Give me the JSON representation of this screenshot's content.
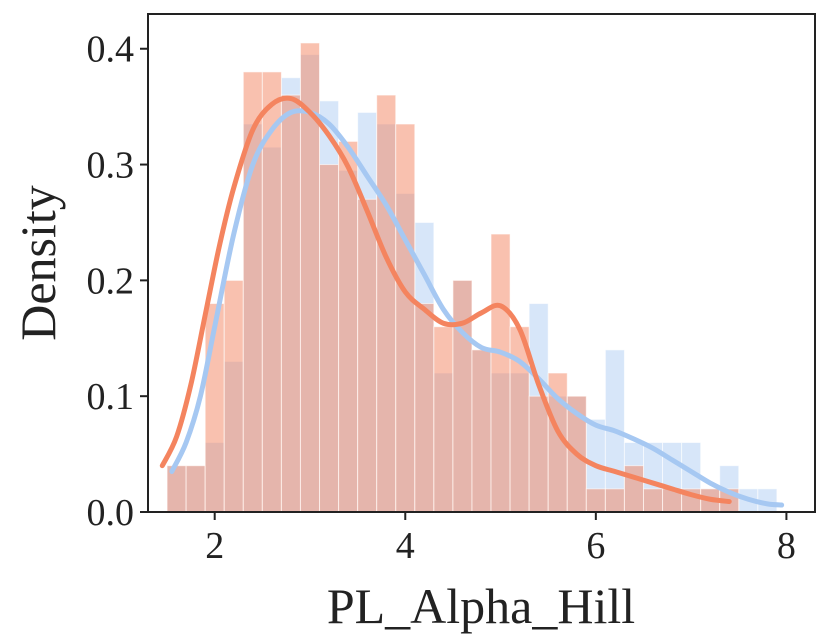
{
  "chart_data": {
    "type": "histogram-kde",
    "xlabel": "PL_Alpha_Hill",
    "ylabel": "Density",
    "xlim": [
      1.3,
      8.3
    ],
    "ylim": [
      0.0,
      0.43
    ],
    "xticks": [
      2,
      4,
      6,
      8
    ],
    "yticks": [
      "0.0",
      "0.1",
      "0.2",
      "0.3",
      "0.4"
    ],
    "grid": false,
    "legend": "none",
    "bin_width": 0.2,
    "series": [
      {
        "color": "#A6C8F2",
        "bin_starts": [
          1.5,
          1.7,
          1.9,
          2.1,
          2.3,
          2.5,
          2.7,
          2.9,
          3.1,
          3.3,
          3.5,
          3.7,
          3.9,
          4.1,
          4.3,
          4.5,
          4.7,
          4.9,
          5.1,
          5.3,
          5.5,
          5.7,
          5.9,
          6.1,
          6.3,
          6.5,
          6.7,
          6.9,
          7.1,
          7.3,
          7.5,
          7.7
        ],
        "values": [
          0.04,
          0.04,
          0.06,
          0.13,
          0.335,
          0.315,
          0.375,
          0.395,
          0.355,
          0.295,
          0.345,
          0.335,
          0.275,
          0.25,
          0.12,
          0.2,
          0.14,
          0.12,
          0.12,
          0.18,
          0.1,
          0.1,
          0.08,
          0.14,
          0.06,
          0.06,
          0.06,
          0.06,
          0.02,
          0.04,
          0.02,
          0.02
        ],
        "kde_x": [
          1.55,
          1.7,
          1.85,
          2.0,
          2.2,
          2.4,
          2.6,
          2.8,
          3.0,
          3.2,
          3.4,
          3.6,
          3.8,
          4.0,
          4.2,
          4.4,
          4.6,
          4.8,
          5.0,
          5.2,
          5.4,
          5.6,
          5.8,
          6.0,
          6.2,
          6.4,
          6.6,
          6.8,
          7.0,
          7.2,
          7.4,
          7.6,
          7.8,
          7.95
        ],
        "kde_y": [
          0.035,
          0.06,
          0.1,
          0.16,
          0.24,
          0.3,
          0.33,
          0.345,
          0.345,
          0.335,
          0.315,
          0.29,
          0.265,
          0.235,
          0.205,
          0.175,
          0.155,
          0.142,
          0.138,
          0.13,
          0.115,
          0.098,
          0.085,
          0.075,
          0.07,
          0.063,
          0.055,
          0.045,
          0.035,
          0.025,
          0.017,
          0.011,
          0.007,
          0.006
        ]
      },
      {
        "color": "#F4845F",
        "bin_starts": [
          1.5,
          1.7,
          1.9,
          2.1,
          2.3,
          2.5,
          2.7,
          2.9,
          3.1,
          3.3,
          3.5,
          3.7,
          3.9,
          4.1,
          4.3,
          4.5,
          4.7,
          4.9,
          5.1,
          5.3,
          5.5,
          5.7,
          5.9,
          6.1,
          6.3,
          6.5,
          6.7,
          6.9,
          7.1,
          7.3
        ],
        "values": [
          0.04,
          0.04,
          0.18,
          0.2,
          0.38,
          0.38,
          0.36,
          0.405,
          0.3,
          0.32,
          0.27,
          0.36,
          0.335,
          0.18,
          0.16,
          0.2,
          0.14,
          0.24,
          0.16,
          0.1,
          0.12,
          0.1,
          0.02,
          0.02,
          0.04,
          0.02,
          0.02,
          0.02,
          0.02,
          0.02
        ],
        "kde_x": [
          1.45,
          1.6,
          1.75,
          1.9,
          2.05,
          2.2,
          2.4,
          2.6,
          2.8,
          3.0,
          3.2,
          3.4,
          3.6,
          3.8,
          4.0,
          4.2,
          4.4,
          4.6,
          4.8,
          5.0,
          5.2,
          5.4,
          5.6,
          5.8,
          6.0,
          6.2,
          6.4,
          6.6,
          6.8,
          7.0,
          7.2,
          7.4
        ],
        "kde_y": [
          0.04,
          0.065,
          0.11,
          0.17,
          0.23,
          0.28,
          0.33,
          0.352,
          0.357,
          0.345,
          0.325,
          0.298,
          0.26,
          0.22,
          0.19,
          0.175,
          0.163,
          0.163,
          0.172,
          0.178,
          0.158,
          0.11,
          0.07,
          0.05,
          0.04,
          0.035,
          0.03,
          0.025,
          0.02,
          0.015,
          0.011,
          0.009
        ]
      }
    ]
  }
}
